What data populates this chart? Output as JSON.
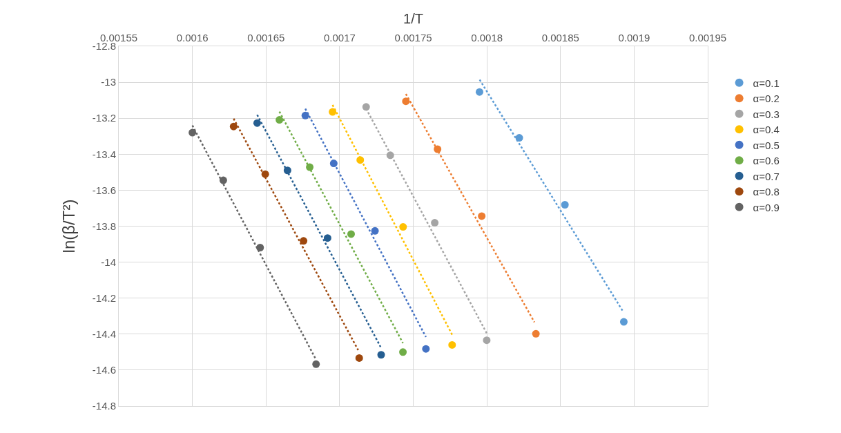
{
  "chart_data": {
    "type": "scatter",
    "xlabel": "1/T",
    "ylabel": "ln(β/T²)",
    "xlim": [
      0.00155,
      0.00195
    ],
    "xticks": [
      0.00155,
      0.0016,
      0.00165,
      0.0017,
      0.00175,
      0.0018,
      0.00185,
      0.0019,
      0.00195
    ],
    "ylim": [
      -14.8,
      -12.8
    ],
    "yticks": [
      -14.8,
      -14.6,
      -14.4,
      -14.2,
      -14,
      -13.8,
      -13.6,
      -13.4,
      -13.2,
      -13,
      -12.8
    ],
    "grid": true,
    "legend": "right",
    "marker": "circle",
    "series": [
      {
        "name": "α=0.1",
        "color": "#5b9bd5",
        "x": [
          0.001795,
          0.001822,
          0.001853,
          0.001893
        ],
        "values": [
          -13.054,
          -13.309,
          -13.681,
          -14.332
        ]
      },
      {
        "name": "α=0.2",
        "color": "#ed7d31",
        "x": [
          0.001745,
          0.0017665,
          0.0017965,
          0.0018333
        ],
        "values": [
          -13.106,
          -13.372,
          -13.744,
          -14.398
        ]
      },
      {
        "name": "α=0.3",
        "color": "#a5a5a5",
        "x": [
          0.001718,
          0.0017344,
          0.0017646,
          0.0017999
        ],
        "values": [
          -13.137,
          -13.406,
          -13.781,
          -14.434
        ]
      },
      {
        "name": "α=0.4",
        "color": "#ffc000",
        "x": [
          0.0016952,
          0.001714,
          0.0017431,
          0.0017764
        ],
        "values": [
          -13.165,
          -13.432,
          -13.804,
          -14.46
        ]
      },
      {
        "name": "α=0.5",
        "color": "#4472c4",
        "x": [
          0.0016767,
          0.001696,
          0.001724,
          0.0017586
        ],
        "values": [
          -13.185,
          -13.451,
          -13.826,
          -14.482
        ]
      },
      {
        "name": "α=0.6",
        "color": "#70ad47",
        "x": [
          0.0016591,
          0.0016797,
          0.0017078,
          0.001743
        ],
        "values": [
          -13.209,
          -13.472,
          -13.844,
          -14.5
        ]
      },
      {
        "name": "α=0.7",
        "color": "#255e91",
        "x": [
          0.001644,
          0.0016646,
          0.0016918,
          0.0017282
        ],
        "values": [
          -13.227,
          -13.49,
          -13.866,
          -14.515
        ]
      },
      {
        "name": "α=0.8",
        "color": "#9e480e",
        "x": [
          0.001628,
          0.0016495,
          0.0016755,
          0.0017133
        ],
        "values": [
          -13.246,
          -13.511,
          -13.882,
          -14.533
        ]
      },
      {
        "name": "α=0.9",
        "color": "#636363",
        "x": [
          0.0016,
          0.001621,
          0.001646,
          0.001684
        ],
        "values": [
          -13.28,
          -13.545,
          -13.919,
          -14.567
        ]
      },
      {
        "type": "line",
        "line_style": "dotted",
        "marker": "none",
        "color": "#5b9bd5",
        "x": [
          0.0017951,
          0.0018923
        ],
        "values": [
          -12.986,
          -14.272
        ]
      },
      {
        "type": "line",
        "line_style": "dotted",
        "marker": "none",
        "color": "#ed7d31",
        "x": [
          0.001745,
          0.0018323
        ],
        "values": [
          -13.065,
          -14.334
        ]
      },
      {
        "type": "line",
        "line_style": "dotted",
        "marker": "none",
        "color": "#a5a5a5",
        "x": [
          0.001718,
          0.0017999
        ],
        "values": [
          -13.147,
          -14.395
        ]
      },
      {
        "type": "line",
        "line_style": "dotted",
        "marker": "none",
        "color": "#ffc000",
        "x": [
          0.0016952,
          0.0017764
        ],
        "values": [
          -13.126,
          -14.403
        ]
      },
      {
        "type": "line",
        "line_style": "dotted",
        "marker": "none",
        "color": "#4472c4",
        "x": [
          0.0016767,
          0.0017586
        ],
        "values": [
          -13.147,
          -14.416
        ]
      },
      {
        "type": "line",
        "line_style": "dotted",
        "marker": "none",
        "color": "#70ad47",
        "x": [
          0.0016591,
          0.001743
        ],
        "values": [
          -13.163,
          -14.45
        ]
      },
      {
        "type": "line",
        "line_style": "dotted",
        "marker": "none",
        "color": "#255e91",
        "x": [
          0.001644,
          0.0017278
        ],
        "values": [
          -13.181,
          -14.471
        ]
      },
      {
        "type": "line",
        "line_style": "dotted",
        "marker": "none",
        "color": "#9e480e",
        "x": [
          0.001628,
          0.0017126
        ],
        "values": [
          -13.202,
          -14.489
        ]
      },
      {
        "type": "line",
        "line_style": "dotted",
        "marker": "none",
        "color": "#636363",
        "x": [
          0.0016,
          0.0016834
        ],
        "values": [
          -13.24,
          -14.533
        ]
      }
    ]
  }
}
